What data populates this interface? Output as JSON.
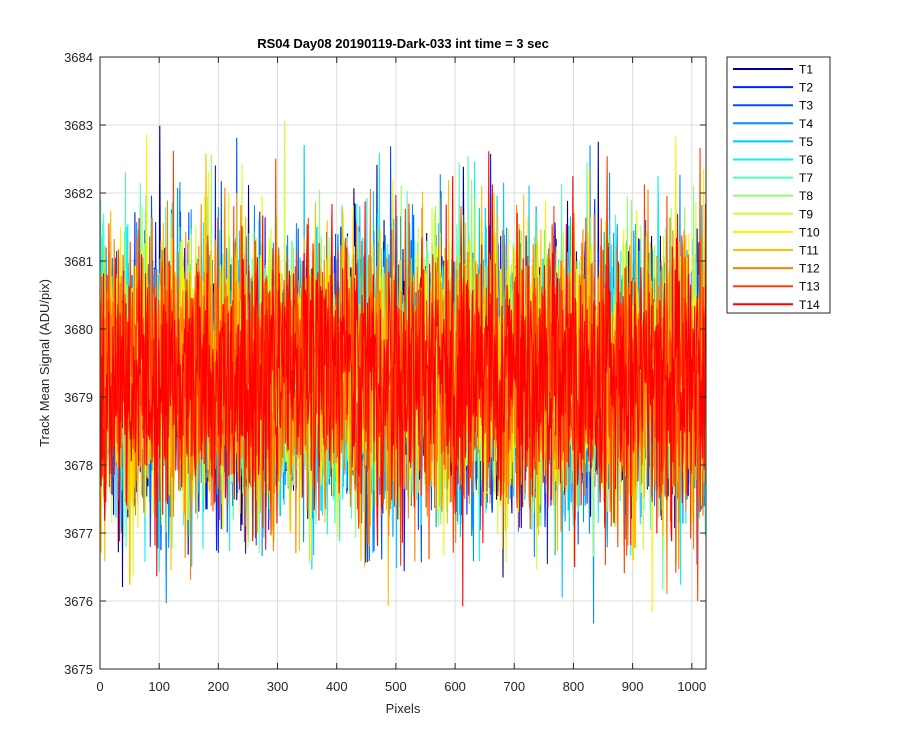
{
  "chart_data": {
    "type": "line",
    "title": "RS04 Day08 20190119-Dark-033 int time = 3 sec",
    "xlabel": "Pixels",
    "ylabel": "Track Mean Signal (ADU/pix)",
    "xlim": [
      0,
      1024
    ],
    "ylim": [
      3675,
      3684
    ],
    "xticks": [
      0,
      100,
      200,
      300,
      400,
      500,
      600,
      700,
      800,
      900,
      1000
    ],
    "yticks": [
      3675,
      3676,
      3677,
      3678,
      3679,
      3680,
      3681,
      3682,
      3683,
      3684
    ],
    "grid": true,
    "legend_position": "outside top-right",
    "series_summary": {
      "n_points": 1024,
      "mean_approx": 3679.3,
      "typical_range": [
        3677.5,
        3681.5
      ],
      "extreme_min": 3675.4,
      "extreme_max": 3683.1
    },
    "series": [
      {
        "name": "T1",
        "color": "#00008f"
      },
      {
        "name": "T2",
        "color": "#0020ff"
      },
      {
        "name": "T3",
        "color": "#0050ff"
      },
      {
        "name": "T4",
        "color": "#0090ff"
      },
      {
        "name": "T5",
        "color": "#00c8ff"
      },
      {
        "name": "T6",
        "color": "#10f0f0"
      },
      {
        "name": "T7",
        "color": "#50ffb0"
      },
      {
        "name": "T8",
        "color": "#90ff70"
      },
      {
        "name": "T9",
        "color": "#d0ff30"
      },
      {
        "name": "T10",
        "color": "#ffef00"
      },
      {
        "name": "T11",
        "color": "#ffbf00"
      },
      {
        "name": "T12",
        "color": "#ff8000"
      },
      {
        "name": "T13",
        "color": "#ff4000"
      },
      {
        "name": "T14",
        "color": "#ff0000"
      }
    ]
  }
}
